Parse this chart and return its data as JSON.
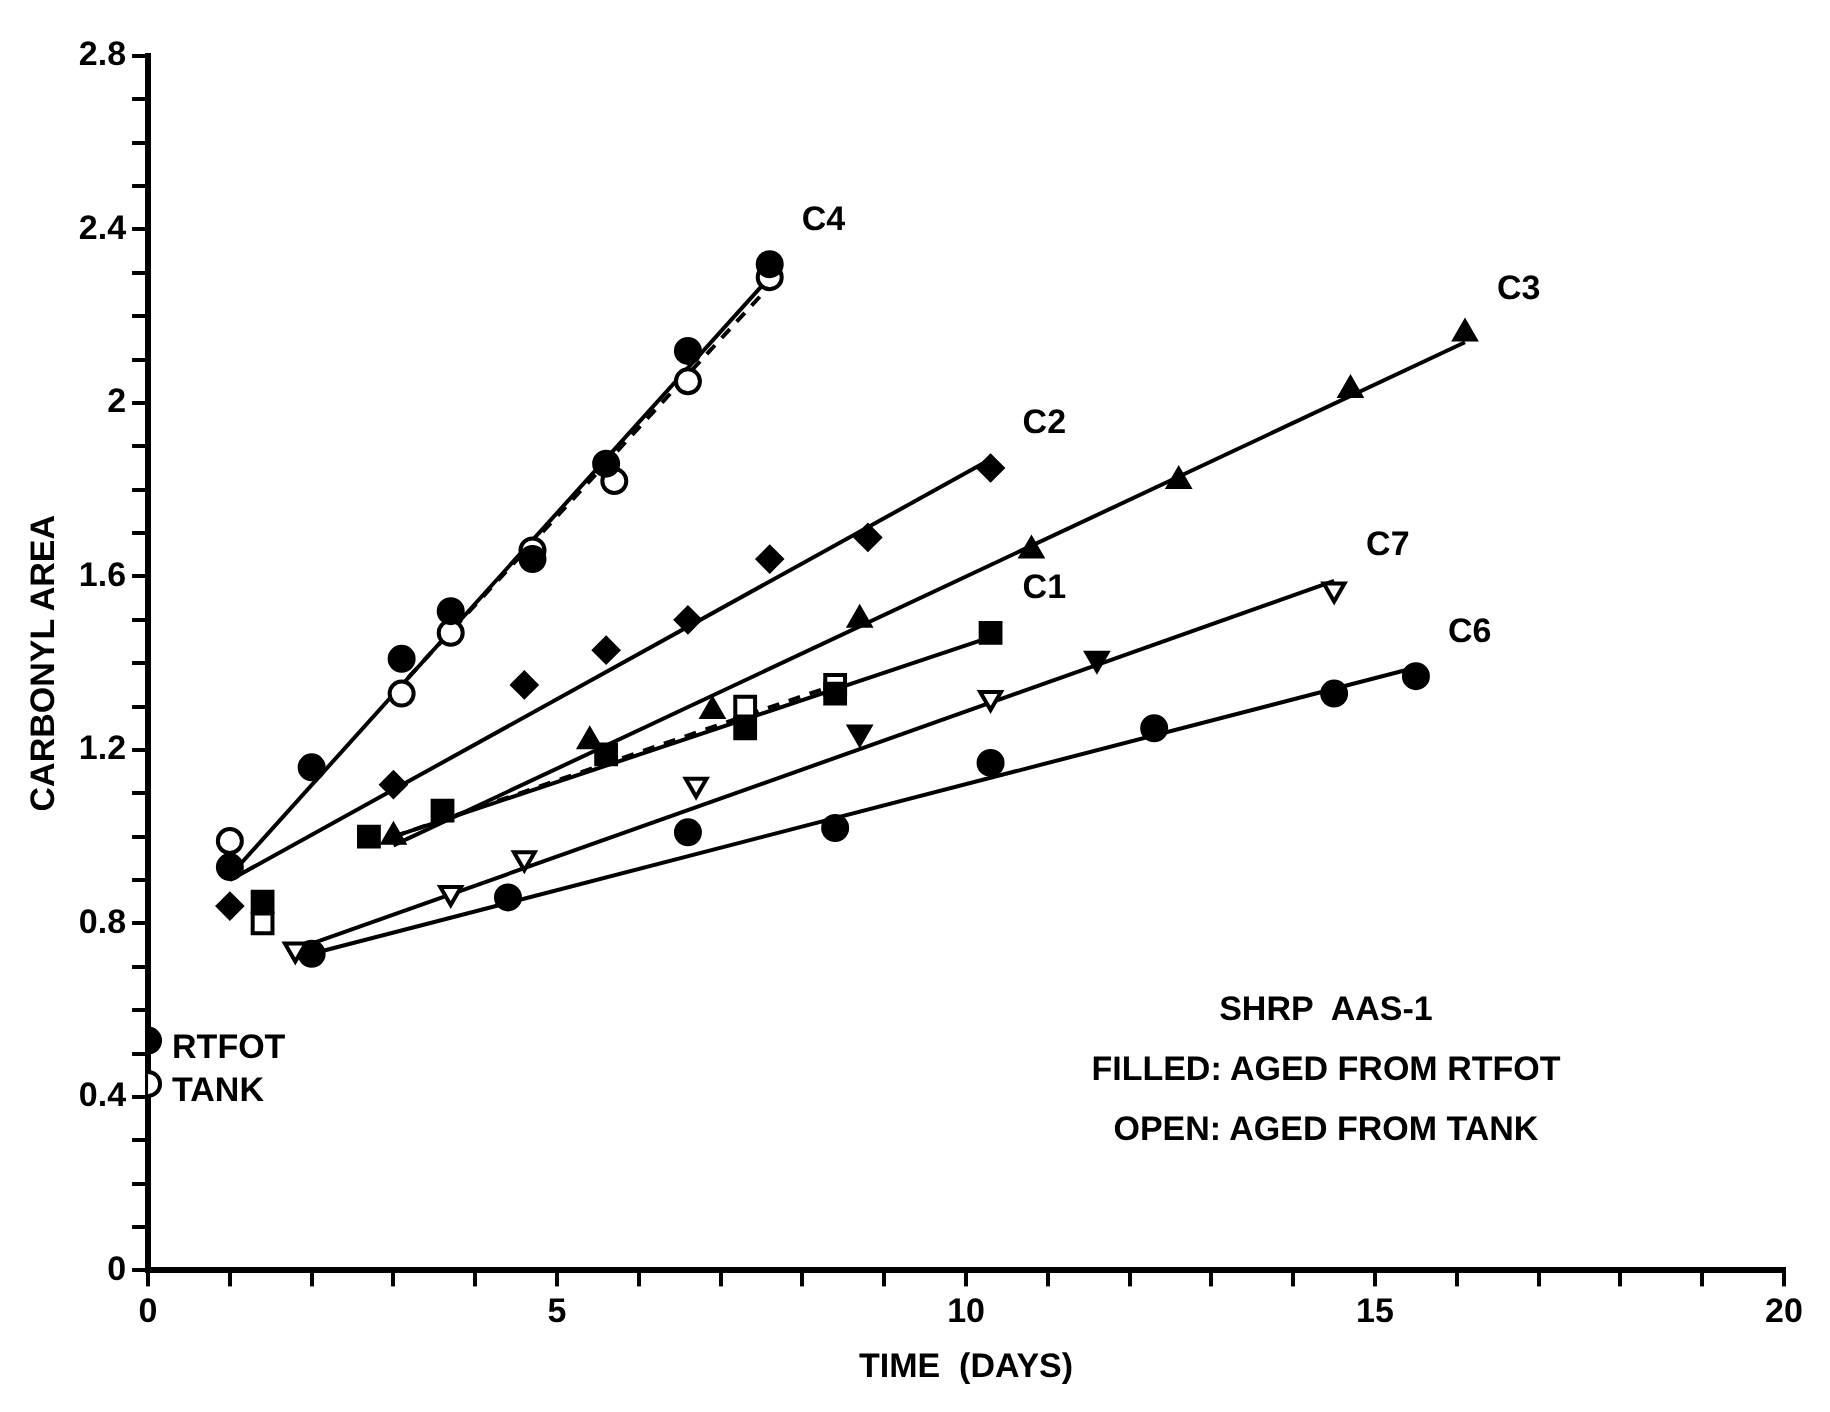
{
  "chart_data": {
    "type": "scatter",
    "xlabel": "TIME  (DAYS)",
    "ylabel": "CARBONYL AREA",
    "xlim": [
      0,
      20
    ],
    "ylim": [
      0,
      2.8
    ],
    "xticks": [
      0,
      {
        "value": 1,
        "label": null
      },
      {
        "value": 2,
        "label": null
      },
      {
        "value": 3,
        "label": null
      },
      {
        "value": 4,
        "label": null
      },
      5,
      {
        "value": 6,
        "label": null
      },
      {
        "value": 7,
        "label": null
      },
      {
        "value": 8,
        "label": null
      },
      {
        "value": 9,
        "label": null
      },
      10,
      {
        "value": 11,
        "label": null
      },
      {
        "value": 12,
        "label": null
      },
      {
        "value": 13,
        "label": null
      },
      {
        "value": 14,
        "label": null
      },
      15,
      {
        "value": 16,
        "label": null
      },
      {
        "value": 17,
        "label": null
      },
      {
        "value": 18,
        "label": null
      },
      {
        "value": 19,
        "label": null
      },
      20
    ],
    "yticks": [
      0,
      {
        "value": 0.1,
        "label": null
      },
      {
        "value": 0.2,
        "label": null
      },
      {
        "value": 0.3,
        "label": null
      },
      0.4,
      {
        "value": 0.5,
        "label": null
      },
      {
        "value": 0.6,
        "label": null
      },
      {
        "value": 0.7,
        "label": null
      },
      0.8,
      {
        "value": 0.9,
        "label": null
      },
      {
        "value": 1,
        "label": null
      },
      {
        "value": 1.1,
        "label": null
      },
      1.2,
      {
        "value": 1.3,
        "label": null
      },
      {
        "value": 1.4,
        "label": null
      },
      {
        "value": 1.5,
        "label": null
      },
      1.6,
      {
        "value": 1.7,
        "label": null
      },
      {
        "value": 1.8,
        "label": null
      },
      {
        "value": 1.9,
        "label": null
      },
      2,
      {
        "value": 2.1,
        "label": null
      },
      {
        "value": 2.2,
        "label": null
      },
      {
        "value": 2.3,
        "label": null
      },
      2.4,
      {
        "value": 2.5,
        "label": null
      },
      {
        "value": 2.6,
        "label": null
      },
      {
        "value": 2.7,
        "label": null
      },
      2.8
    ],
    "grid": false,
    "legend": false,
    "annotations": [
      "SHRP  AAS-1",
      "FILLED: AGED FROM RTFOT",
      "OPEN: AGED FROM TANK"
    ],
    "series": [
      {
        "name": "C4",
        "type": "scatter",
        "marker": "circle",
        "color": "#000000",
        "x": [
          1,
          2,
          3.1,
          3.7,
          4.7,
          5.6,
          6.6,
          7.6
        ],
        "values": [
          0.93,
          1.16,
          1.41,
          1.52,
          1.64,
          1.86,
          2.12,
          2.32
        ]
      },
      {
        "type": "scatter",
        "marker": "circle-open",
        "color": "#000000",
        "x": [
          1,
          3.1,
          3.7,
          4.7,
          5.7,
          6.6,
          7.6
        ],
        "values": [
          0.99,
          1.33,
          1.47,
          1.66,
          1.82,
          2.05,
          2.29
        ]
      },
      {
        "name": "C2",
        "type": "scatter",
        "marker": "diamond",
        "color": "#000000",
        "x": [
          1,
          3,
          4.6,
          5.6,
          6.6,
          7.6,
          8.8,
          10.3
        ],
        "values": [
          0.84,
          1.12,
          1.35,
          1.43,
          1.5,
          1.64,
          1.69,
          1.85
        ]
      },
      {
        "name": "C3",
        "type": "scatter",
        "marker": "triangle",
        "color": "#000000",
        "x": [
          3,
          5.4,
          6.9,
          8.7,
          10.8,
          12.6,
          14.7,
          16.1
        ],
        "values": [
          1.0,
          1.22,
          1.29,
          1.5,
          1.66,
          1.82,
          2.03,
          2.16
        ]
      },
      {
        "name": "C1",
        "type": "scatter",
        "marker": "square",
        "color": "#000000",
        "x": [
          1.4,
          2.7,
          3.6,
          5.6,
          7.3,
          8.4,
          10.3
        ],
        "values": [
          0.85,
          1.0,
          1.06,
          1.19,
          1.25,
          1.33,
          1.47
        ]
      },
      {
        "type": "scatter",
        "marker": "square-open",
        "color": "#000000",
        "x": [
          1.4,
          7.3,
          8.4
        ],
        "values": [
          0.8,
          1.3,
          1.35
        ]
      },
      {
        "name": "C7",
        "type": "scatter",
        "marker": "triangle-down-open",
        "color": "#000000",
        "x": [
          1.8,
          3.7,
          4.6,
          6.7,
          10.3,
          14.5
        ],
        "values": [
          0.74,
          0.87,
          0.95,
          1.12,
          1.32,
          1.57
        ]
      },
      {
        "type": "scatter",
        "marker": "triangle-down",
        "color": "#000000",
        "x": [
          8.7,
          11.6
        ],
        "values": [
          1.24,
          1.41
        ]
      },
      {
        "name": "C6",
        "type": "scatter",
        "marker": "circle",
        "color": "#000000",
        "x": [
          2,
          4.4,
          6.6,
          8.4,
          10.3,
          12.3,
          14.5,
          15.5
        ],
        "values": [
          0.73,
          0.86,
          1.01,
          1.02,
          1.17,
          1.25,
          1.33,
          1.37
        ]
      },
      {
        "name": "RTFOT",
        "type": "scatter",
        "marker": "circle",
        "color": "#000000",
        "x": [
          0
        ],
        "values": [
          0.53
        ]
      },
      {
        "name": "TANK",
        "type": "scatter",
        "marker": "circle-open",
        "color": "#000000",
        "x": [
          0
        ],
        "values": [
          0.43
        ]
      },
      {
        "type": "line",
        "line_style": "solid",
        "color": "#000000",
        "x": [
          1,
          7.6
        ],
        "values": [
          0.91,
          2.29
        ]
      },
      {
        "type": "line",
        "line_style": "dashed",
        "color": "#000000",
        "x": [
          3,
          7.6
        ],
        "values": [
          1.33,
          2.27
        ]
      },
      {
        "type": "line",
        "line_style": "solid",
        "color": "#000000",
        "x": [
          1,
          10.3
        ],
        "values": [
          0.9,
          1.87
        ]
      },
      {
        "type": "line",
        "line_style": "solid",
        "color": "#000000",
        "x": [
          3,
          16.1
        ],
        "values": [
          0.98,
          2.14
        ]
      },
      {
        "type": "line",
        "line_style": "solid",
        "color": "#000000",
        "x": [
          3,
          10.3
        ],
        "values": [
          1.0,
          1.46
        ]
      },
      {
        "type": "line",
        "line_style": "dashed",
        "color": "#000000",
        "x": [
          3,
          8.4
        ],
        "values": [
          1.0,
          1.35
        ]
      },
      {
        "type": "line",
        "line_style": "solid",
        "color": "#000000",
        "x": [
          1.8,
          14.5
        ],
        "values": [
          0.74,
          1.59
        ]
      },
      {
        "type": "line",
        "line_style": "solid",
        "color": "#000000",
        "x": [
          2,
          15.5
        ],
        "values": [
          0.73,
          1.39
        ]
      }
    ]
  }
}
